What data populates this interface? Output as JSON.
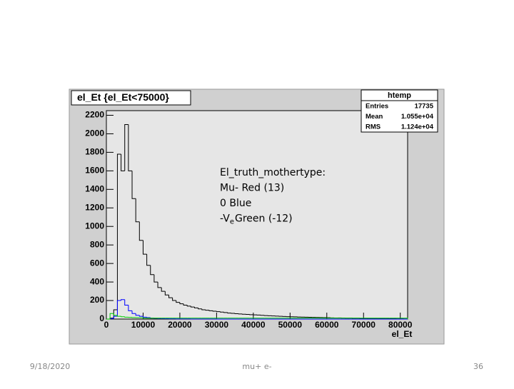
{
  "chart_data": {
    "type": "histogram",
    "title": "el_Et {el_Et<75000}",
    "x_label": "el_Et",
    "stats": {
      "name": "htemp",
      "rows": [
        [
          "Entries",
          "17735"
        ],
        [
          "Mean",
          "1.055e+04"
        ],
        [
          "RMS",
          "1.124e+04"
        ]
      ]
    },
    "annotation": {
      "lines": [
        "El_truth_mothertype:",
        "Mu- Red (13)",
        "0 Blue"
      ],
      "last": {
        "prefix": "-V",
        "subscript": "e",
        "rest": "Green (-12)"
      }
    },
    "footer": {
      "date": "9/18/2020",
      "center": "mu+ e-",
      "page": "36"
    },
    "bins": [
      0,
      1000,
      2000,
      3000,
      4000,
      5000,
      6000,
      7000,
      8000,
      9000,
      10000,
      11000,
      12000,
      13000,
      14000,
      15000,
      16000,
      17000,
      18000,
      19000,
      20000,
      21000,
      22000,
      23000,
      24000,
      25000,
      26000,
      27000,
      28000,
      29000,
      30000,
      31000,
      32000,
      33000,
      34000,
      35000,
      36000,
      37000,
      38000,
      39000,
      40000,
      41000,
      42000,
      43000,
      44000,
      45000,
      46000,
      47000,
      48000,
      49000,
      50000,
      51000,
      52000,
      53000,
      54000,
      55000,
      56000,
      57000,
      58000,
      59000,
      60000,
      61000,
      62000,
      63000,
      64000,
      65000,
      66000,
      67000,
      68000,
      69000,
      70000,
      71000,
      72000,
      73000,
      74000,
      75000,
      76000,
      77000,
      78000,
      79000,
      80000,
      81000,
      82000
    ],
    "series": [
      {
        "color": "#000000",
        "values": [
          0,
          10,
          100,
          1780,
          1600,
          2100,
          1600,
          1300,
          1050,
          850,
          700,
          580,
          480,
          400,
          340,
          300,
          260,
          230,
          200,
          180,
          165,
          150,
          140,
          130,
          120,
          110,
          100,
          95,
          90,
          85,
          80,
          75,
          70,
          65,
          62,
          58,
          55,
          52,
          50,
          47,
          45,
          43,
          40,
          38,
          36,
          34,
          32,
          30,
          28,
          26,
          25,
          24,
          22,
          21,
          20,
          19,
          18,
          17,
          16,
          15,
          14,
          13,
          12,
          12,
          11,
          10,
          10,
          9,
          9,
          8,
          8,
          7,
          7,
          6,
          6,
          5,
          5,
          4,
          4,
          3,
          3,
          2
        ]
      },
      {
        "color": "#0000ff",
        "values": [
          0,
          5,
          30,
          200,
          210,
          150,
          90,
          60,
          40,
          30,
          20,
          15,
          10,
          8,
          6,
          5,
          4,
          3,
          3,
          2,
          2,
          2,
          2,
          1,
          1,
          1,
          1,
          1,
          1,
          1,
          0,
          0,
          0,
          0,
          0,
          0,
          0,
          0,
          0,
          0,
          0,
          0,
          0,
          0,
          0,
          0,
          0,
          0,
          0,
          0,
          0,
          0,
          0,
          0,
          0,
          0,
          0,
          0,
          0,
          0,
          0,
          0,
          0,
          0,
          0,
          0,
          0,
          0,
          0,
          0,
          0,
          0,
          0,
          0,
          0,
          0,
          0,
          0,
          0,
          0,
          0,
          0
        ]
      },
      {
        "color": "#00cc00",
        "values": [
          0,
          60,
          40,
          30,
          25,
          20,
          18,
          16,
          15,
          15,
          10,
          10,
          10,
          10,
          10,
          10,
          10,
          10,
          10,
          10,
          10,
          10,
          10,
          10,
          10,
          10,
          10,
          10,
          10,
          10,
          10,
          10,
          10,
          10,
          10,
          10,
          10,
          10,
          10,
          10,
          10,
          10,
          10,
          10,
          10,
          10,
          10,
          10,
          10,
          10,
          10,
          10,
          10,
          10,
          10,
          10,
          10,
          10,
          10,
          10,
          10,
          10,
          10,
          10,
          10,
          10,
          10,
          10,
          10,
          10,
          10,
          10,
          10,
          10,
          10,
          10,
          10,
          10,
          10,
          10,
          10,
          10
        ]
      }
    ],
    "xlim": [
      0,
      82000
    ],
    "ylim": [
      0,
      2250
    ],
    "xticks": [
      0,
      10000,
      20000,
      30000,
      40000,
      50000,
      60000,
      70000,
      80000
    ],
    "yticks": [
      0,
      200,
      400,
      600,
      800,
      1000,
      1200,
      1400,
      1600,
      1800,
      2000,
      2200
    ]
  }
}
